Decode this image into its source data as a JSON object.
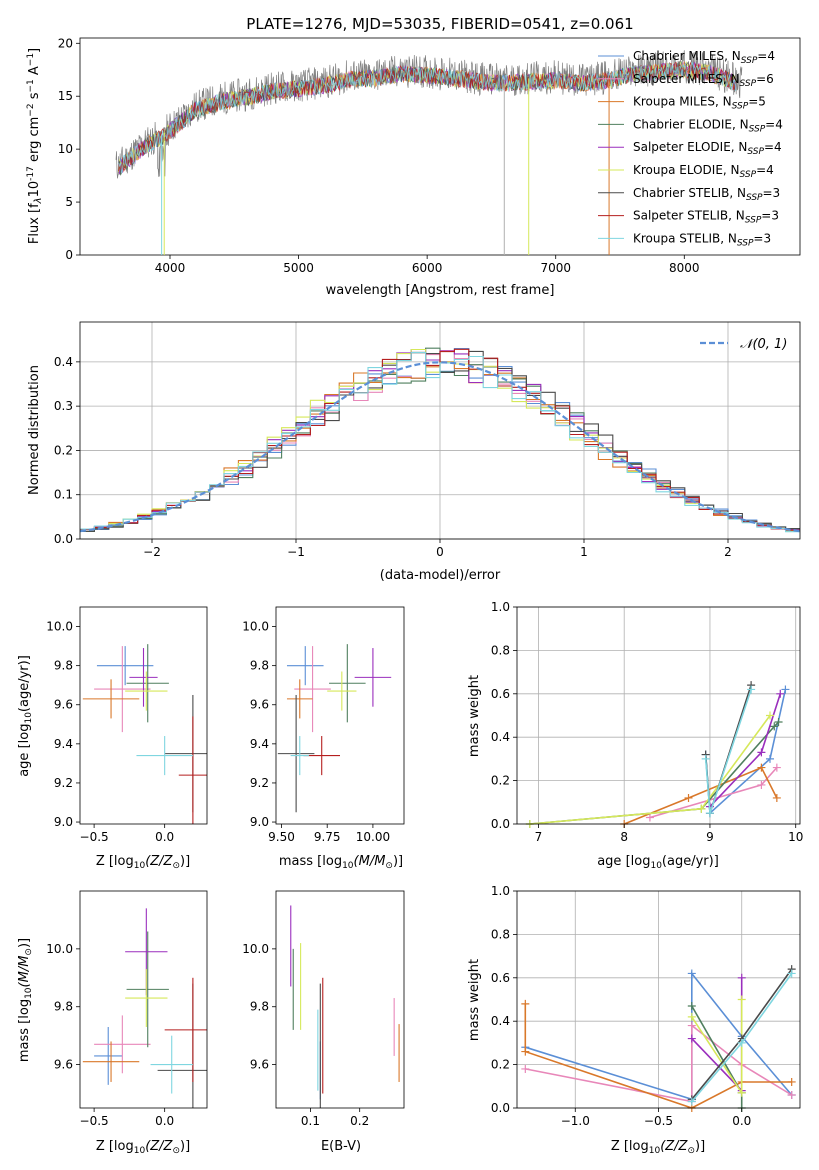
{
  "figure_title": "PLATE=1276, MJD=53035, FIBERID=0541, z=0.061",
  "colors": {
    "chabrier_miles": "#5b8fd6",
    "salpeter_miles": "#e887b9",
    "kroupa_miles": "#d9782a",
    "chabrier_elodie": "#4f7f5e",
    "salpeter_elodie": "#9a2fbd",
    "kroupa_elodie": "#d6e85a",
    "chabrier_stelib": "#4a4a4a",
    "salpeter_stelib": "#b51f1f",
    "kroupa_stelib": "#7fd6e0",
    "gauss": "#5b8fd6"
  },
  "chart_data": [
    {
      "id": "spectrum",
      "type": "line",
      "xlabel": "wavelength [Angstrom, rest frame]",
      "ylabel": "Flux [f",
      "ylabel_rest": "10",
      "ylabel_exp": "-17",
      "ylabel_units": " erg cm",
      "xlim": [
        3300,
        8900
      ],
      "ylim": [
        0,
        20.5
      ],
      "xticks": [
        "4000",
        "5000",
        "6000",
        "7000",
        "8000"
      ],
      "yticks": [
        "0",
        "5",
        "10",
        "15",
        "20"
      ],
      "continuum_x": [
        3600,
        3800,
        3950,
        4050,
        4200,
        4400,
        4600,
        4800,
        5000,
        5200,
        5400,
        5600,
        5800,
        6000,
        6200,
        6400,
        6600,
        6800,
        7000,
        7200,
        7400,
        7600,
        7800,
        8000,
        8200,
        8400,
        8600
      ],
      "continuum_y": [
        8.5,
        10.5,
        11.5,
        12.5,
        14.0,
        14.8,
        15.2,
        15.8,
        16.0,
        16.3,
        16.9,
        17.0,
        17.4,
        17.3,
        17.0,
        16.7,
        16.5,
        16.7,
        16.8,
        16.5,
        16.8,
        17.4,
        17.6,
        17.8,
        17.5,
        16.5,
        15.8
      ],
      "legend": [
        {
          "label": "Chabrier MILES, N",
          "sub": "SSP",
          "tail": "=4",
          "color_key": "chabrier_miles"
        },
        {
          "label": "Salpeter MILES, N",
          "sub": "SSP",
          "tail": "=6",
          "color_key": "salpeter_miles"
        },
        {
          "label": "Kroupa MILES, N",
          "sub": "SSP",
          "tail": "=5",
          "color_key": "kroupa_miles"
        },
        {
          "label": "Chabrier ELODIE, N",
          "sub": "SSP",
          "tail": "=4",
          "color_key": "chabrier_elodie"
        },
        {
          "label": "Salpeter ELODIE, N",
          "sub": "SSP",
          "tail": "=4",
          "color_key": "salpeter_elodie"
        },
        {
          "label": "Kroupa ELODIE, N",
          "sub": "SSP",
          "tail": "=4",
          "color_key": "kroupa_elodie"
        },
        {
          "label": "Chabrier STELIB, N",
          "sub": "SSP",
          "tail": "=3",
          "color_key": "chabrier_stelib"
        },
        {
          "label": "Salpeter STELIB, N",
          "sub": "SSP",
          "tail": "=3",
          "color_key": "salpeter_stelib"
        },
        {
          "label": "Kroupa STELIB, N",
          "sub": "SSP",
          "tail": "=3",
          "color_key": "kroupa_stelib"
        }
      ]
    },
    {
      "id": "residuals",
      "type": "line",
      "xlabel": "(data-model)/error",
      "ylabel": "Normed distribution",
      "xlim": [
        -2.5,
        2.5
      ],
      "ylim": [
        0,
        0.49
      ],
      "xticks": [
        "−2",
        "−1",
        "0",
        "1",
        "2"
      ],
      "yticks": [
        "0.0",
        "0.1",
        "0.2",
        "0.3",
        "0.4"
      ],
      "grid": true,
      "legend_label": "𝒩(0, 1)",
      "bin_width": 0.1,
      "series_color_keys": [
        "chabrier_miles",
        "salpeter_miles",
        "kroupa_miles",
        "chabrier_elodie",
        "salpeter_elodie",
        "kroupa_elodie",
        "chabrier_stelib",
        "salpeter_stelib",
        "kroupa_stelib"
      ]
    },
    {
      "id": "z_age",
      "type": "scatter",
      "xlabel": "Z [log",
      "xlabel_sub": "10",
      "xlabel_rest": "(Z/Z",
      "ylabel": "age  [log",
      "ylabel_sub": "10",
      "ylabel_rest": "(age/yr)]",
      "xlim": [
        -0.6,
        0.3
      ],
      "ylim": [
        8.99,
        10.1
      ],
      "xticks": [
        -0.5,
        0.0
      ],
      "xtick_labels": [
        "−0.5",
        "0.0"
      ],
      "yticks": [
        9.0,
        9.2,
        9.4,
        9.6,
        9.8,
        10.0
      ],
      "ytick_labels": [
        "9.0",
        "9.2",
        "9.4",
        "9.6",
        "9.8",
        "10.0"
      ],
      "points": [
        {
          "color_key": "chabrier_miles",
          "x": -0.28,
          "xerr": 0.2,
          "y": 9.8,
          "yerr": 0.1
        },
        {
          "color_key": "salpeter_miles",
          "x": -0.3,
          "xerr": 0.2,
          "y": 9.68,
          "yerr": 0.22
        },
        {
          "color_key": "kroupa_miles",
          "x": -0.38,
          "xerr": 0.2,
          "y": 9.63,
          "yerr": 0.1
        },
        {
          "color_key": "chabrier_elodie",
          "x": -0.12,
          "xerr": 0.15,
          "y": 9.71,
          "yerr": 0.2
        },
        {
          "color_key": "salpeter_elodie",
          "x": -0.15,
          "xerr": 0.1,
          "y": 9.74,
          "yerr": 0.15
        },
        {
          "color_key": "kroupa_elodie",
          "x": -0.13,
          "xerr": 0.15,
          "y": 9.67,
          "yerr": 0.1
        },
        {
          "color_key": "chabrier_stelib",
          "x": 0.2,
          "xerr": 0.2,
          "y": 9.35,
          "yerr": 0.3
        },
        {
          "color_key": "salpeter_stelib",
          "x": 0.2,
          "xerr": 0.1,
          "y": 9.24,
          "yerr": 0.3
        },
        {
          "color_key": "kroupa_stelib",
          "x": 0.0,
          "xerr": 0.2,
          "y": 9.34,
          "yerr": 0.1
        }
      ]
    },
    {
      "id": "mass_age",
      "type": "scatter",
      "xlabel": "mass [log",
      "xlabel_sub": "10",
      "xlabel_rest": "(M/M",
      "xlim": [
        9.47,
        10.17
      ],
      "ylim": [
        8.99,
        10.1
      ],
      "xticks": [
        9.5,
        9.75,
        10.0
      ],
      "xtick_labels": [
        "9.50",
        "9.75",
        "10.00"
      ],
      "yticks": [
        9.0,
        9.2,
        9.4,
        9.6,
        9.8,
        10.0
      ],
      "ytick_labels": [
        "9.0",
        "9.2",
        "9.4",
        "9.6",
        "9.8",
        "10.0"
      ],
      "points": [
        {
          "color_key": "chabrier_miles",
          "x": 9.63,
          "xerr": 0.1,
          "y": 9.8,
          "yerr": 0.1
        },
        {
          "color_key": "salpeter_miles",
          "x": 9.67,
          "xerr": 0.1,
          "y": 9.68,
          "yerr": 0.22
        },
        {
          "color_key": "kroupa_miles",
          "x": 9.6,
          "xerr": 0.07,
          "y": 9.63,
          "yerr": 0.1
        },
        {
          "color_key": "chabrier_elodie",
          "x": 9.86,
          "xerr": 0.1,
          "y": 9.71,
          "yerr": 0.2
        },
        {
          "color_key": "salpeter_elodie",
          "x": 10.0,
          "xerr": 0.1,
          "y": 9.74,
          "yerr": 0.15
        },
        {
          "color_key": "kroupa_elodie",
          "x": 9.83,
          "xerr": 0.08,
          "y": 9.67,
          "yerr": 0.1
        },
        {
          "color_key": "chabrier_stelib",
          "x": 9.58,
          "xerr": 0.1,
          "y": 9.35,
          "yerr": 0.3
        },
        {
          "color_key": "salpeter_stelib",
          "x": 9.72,
          "xerr": 0.1,
          "y": 9.34,
          "yerr": 0.1
        },
        {
          "color_key": "kroupa_stelib",
          "x": 9.6,
          "xerr": 0.05,
          "y": 9.34,
          "yerr": 0.1
        }
      ]
    },
    {
      "id": "age_weight",
      "type": "line",
      "xlabel": "age  [log",
      "xlabel_sub": "10",
      "xlabel_rest": "(age/yr)]",
      "ylabel": "mass weight",
      "xlim": [
        6.75,
        10.05
      ],
      "ylim": [
        0,
        1.0
      ],
      "xticks": [
        7,
        8,
        9,
        10
      ],
      "xtick_labels": [
        "7",
        "8",
        "9",
        "10"
      ],
      "yticks": [
        0,
        0.2,
        0.4,
        0.6,
        0.8,
        1.0
      ],
      "ytick_labels": [
        "0.0",
        "0.2",
        "0.4",
        "0.6",
        "0.8",
        "1.0"
      ],
      "grid": true,
      "series": [
        {
          "color_key": "chabrier_miles",
          "x": [
            8.95,
            9.0,
            9.7,
            9.88
          ],
          "y": [
            0.32,
            0.05,
            0.3,
            0.62
          ]
        },
        {
          "color_key": "salpeter_miles",
          "x": [
            8.3,
            9.6,
            9.78
          ],
          "y": [
            0.03,
            0.18,
            0.26
          ]
        },
        {
          "color_key": "kroupa_miles",
          "x": [
            8.0,
            8.75,
            9.6,
            9.78
          ],
          "y": [
            0.0,
            0.12,
            0.26,
            0.12
          ]
        },
        {
          "color_key": "chabrier_elodie",
          "x": [
            6.9,
            8.9,
            9.75,
            9.8
          ],
          "y": [
            0.0,
            0.07,
            0.45,
            0.47
          ]
        },
        {
          "color_key": "salpeter_elodie",
          "x": [
            9.0,
            9.6,
            9.82
          ],
          "y": [
            0.08,
            0.33,
            0.6
          ]
        },
        {
          "color_key": "kroupa_elodie",
          "x": [
            6.9,
            8.9,
            9.7
          ],
          "y": [
            0.0,
            0.07,
            0.5
          ]
        },
        {
          "color_key": "chabrier_stelib",
          "x": [
            8.95,
            9.0,
            9.48
          ],
          "y": [
            0.32,
            0.05,
            0.64
          ]
        },
        {
          "color_key": "kroupa_stelib",
          "x": [
            8.95,
            9.0,
            9.48
          ],
          "y": [
            0.3,
            0.05,
            0.62
          ]
        }
      ]
    },
    {
      "id": "z_mass",
      "type": "scatter",
      "xlabel": "Z [log",
      "xlabel_sub": "10",
      "xlabel_rest": "(Z/Z",
      "ylabel": "mass [log",
      "ylabel_sub": "10",
      "ylabel_rest": "(M/M",
      "xlim": [
        -0.6,
        0.3
      ],
      "ylim": [
        9.45,
        10.2
      ],
      "xticks": [
        -0.5,
        0.0
      ],
      "xtick_labels": [
        "−0.5",
        "0.0"
      ],
      "yticks": [
        9.6,
        9.8,
        10.0
      ],
      "ytick_labels": [
        "9.6",
        "9.8",
        "10.0"
      ],
      "points": [
        {
          "color_key": "chabrier_miles",
          "x": -0.4,
          "xerr": 0.1,
          "y": 9.63,
          "yerr": 0.1
        },
        {
          "color_key": "salpeter_miles",
          "x": -0.3,
          "xerr": 0.2,
          "y": 9.67,
          "yerr": 0.1
        },
        {
          "color_key": "kroupa_miles",
          "x": -0.38,
          "xerr": 0.2,
          "y": 9.61,
          "yerr": 0.07
        },
        {
          "color_key": "chabrier_elodie",
          "x": -0.12,
          "xerr": 0.15,
          "y": 9.86,
          "yerr": 0.2
        },
        {
          "color_key": "salpeter_elodie",
          "x": -0.13,
          "xerr": 0.15,
          "y": 9.99,
          "yerr": 0.15
        },
        {
          "color_key": "kroupa_elodie",
          "x": -0.13,
          "xerr": 0.15,
          "y": 9.83,
          "yerr": 0.1
        },
        {
          "color_key": "chabrier_stelib",
          "x": 0.2,
          "xerr": 0.25,
          "y": 9.58,
          "yerr": 0.3
        },
        {
          "color_key": "salpeter_stelib",
          "x": 0.2,
          "xerr": 0.2,
          "y": 9.72,
          "yerr": 0.18
        },
        {
          "color_key": "kroupa_stelib",
          "x": 0.05,
          "xerr": 0.15,
          "y": 9.6,
          "yerr": 0.1
        }
      ]
    },
    {
      "id": "ebv_mass",
      "type": "scatter",
      "xlabel": "E(B-V)",
      "xlim": [
        0.03,
        0.29
      ],
      "ylim": [
        9.45,
        10.2
      ],
      "xticks": [
        0.1,
        0.2
      ],
      "xtick_labels": [
        "0.1",
        "0.2"
      ],
      "yticks": [
        9.6,
        9.8,
        10.0
      ],
      "ytick_labels": [
        "9.6",
        "9.8",
        "10.0"
      ],
      "points": [
        {
          "color_key": "chabrier_miles",
          "x": 0.12,
          "xerr": 0.0,
          "y": 9.58,
          "yerr": 0.1
        },
        {
          "color_key": "salpeter_miles",
          "x": 0.27,
          "xerr": 0.0,
          "y": 9.73,
          "yerr": 0.1
        },
        {
          "color_key": "kroupa_miles",
          "x": 0.28,
          "xerr": 0.0,
          "y": 9.64,
          "yerr": 0.1
        },
        {
          "color_key": "chabrier_elodie",
          "x": 0.065,
          "xerr": 0.0,
          "y": 9.86,
          "yerr": 0.14
        },
        {
          "color_key": "salpeter_elodie",
          "x": 0.06,
          "xerr": 0.0,
          "y": 10.01,
          "yerr": 0.14
        },
        {
          "color_key": "kroupa_elodie",
          "x": 0.08,
          "xerr": 0.0,
          "y": 9.87,
          "yerr": 0.15
        },
        {
          "color_key": "chabrier_stelib",
          "x": 0.12,
          "xerr": 0.0,
          "y": 9.6,
          "yerr": 0.28
        },
        {
          "color_key": "salpeter_stelib",
          "x": 0.125,
          "xerr": 0.0,
          "y": 9.7,
          "yerr": 0.2
        },
        {
          "color_key": "kroupa_stelib",
          "x": 0.115,
          "xerr": 0.0,
          "y": 9.65,
          "yerr": 0.14
        }
      ]
    },
    {
      "id": "z_weight",
      "type": "line",
      "xlabel": "Z [log",
      "xlabel_sub": "10",
      "xlabel_rest": "(Z/Z",
      "ylabel": "mass weight",
      "xlim": [
        -1.35,
        0.35
      ],
      "ylim": [
        0,
        1.0
      ],
      "xticks": [
        -1.0,
        -0.5,
        0.0
      ],
      "xtick_labels": [
        "−1.0",
        "−0.5",
        "0.0"
      ],
      "yticks": [
        0,
        0.2,
        0.4,
        0.6,
        0.8,
        1.0
      ],
      "ytick_labels": [
        "0.0",
        "0.2",
        "0.4",
        "0.6",
        "0.8",
        "1.0"
      ],
      "grid": true,
      "series": [
        {
          "color_key": "chabrier_miles",
          "x": [
            -1.3,
            -0.3,
            -0.3,
            0.0,
            0.3
          ],
          "y": [
            0.28,
            0.04,
            0.62,
            0.33,
            0.06
          ]
        },
        {
          "color_key": "salpeter_miles",
          "x": [
            -1.3,
            -0.3,
            -0.3,
            0.0,
            0.3
          ],
          "y": [
            0.18,
            0.03,
            0.38,
            0.2,
            0.06
          ]
        },
        {
          "color_key": "kroupa_miles",
          "x": [
            -1.3,
            -1.3,
            -0.3,
            0.0,
            0.3
          ],
          "y": [
            0.48,
            0.26,
            0.0,
            0.12,
            0.12
          ]
        },
        {
          "color_key": "chabrier_elodie",
          "x": [
            -0.3,
            0.0,
            0.0
          ],
          "y": [
            0.47,
            0.07,
            0.0
          ]
        },
        {
          "color_key": "salpeter_elodie",
          "x": [
            -0.3,
            0.0,
            0.0
          ],
          "y": [
            0.32,
            0.08,
            0.6
          ]
        },
        {
          "color_key": "kroupa_elodie",
          "x": [
            -0.3,
            0.0,
            0.0
          ],
          "y": [
            0.42,
            0.07,
            0.5
          ]
        },
        {
          "color_key": "chabrier_stelib",
          "x": [
            -0.3,
            0.0,
            0.3
          ],
          "y": [
            0.04,
            0.32,
            0.64
          ]
        },
        {
          "color_key": "kroupa_stelib",
          "x": [
            -0.3,
            0.0,
            0.3
          ],
          "y": [
            0.03,
            0.3,
            0.62
          ]
        }
      ]
    }
  ]
}
